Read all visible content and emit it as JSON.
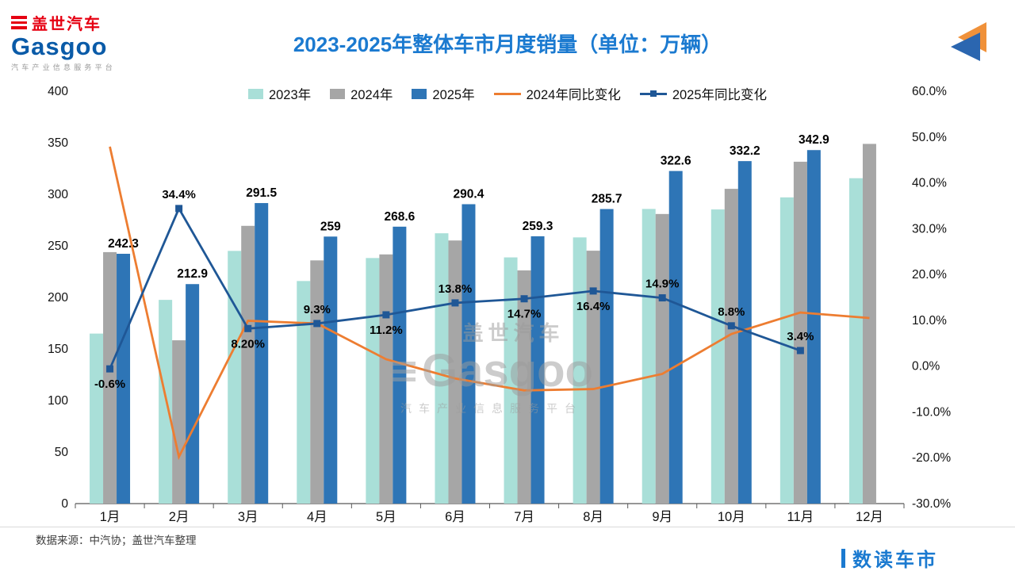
{
  "header": {
    "logo": {
      "brand_cn": "盖世汽车",
      "brand_en": "Gasgoo",
      "tagline": "汽车产业信息服务平台"
    },
    "title": "2023-2025年整体车市月度销量（单位：万辆）",
    "corner_icon": "double-triangle-logo-icon"
  },
  "legend": [
    {
      "label": "2023年",
      "type": "bar",
      "color": "#a9dfd8"
    },
    {
      "label": "2024年",
      "type": "bar",
      "color": "#a6a6a6"
    },
    {
      "label": "2025年",
      "type": "bar",
      "color": "#2e75b6"
    },
    {
      "label": "2024年同比变化",
      "type": "line",
      "color": "#ed7d31"
    },
    {
      "label": "2025年同比变化",
      "type": "line-marker",
      "color": "#1f5796"
    }
  ],
  "chart_data": {
    "type": "combo (grouped bar + line, dual axis)",
    "title": "2023-2025年整体车市月度销量（单位：万辆）",
    "categories": [
      "1月",
      "2月",
      "3月",
      "4月",
      "5月",
      "6月",
      "7月",
      "8月",
      "9月",
      "10月",
      "11月",
      "12月"
    ],
    "bar_series": [
      {
        "name": "2023年",
        "color": "#a9dfd8",
        "values": [
          164.9,
          197.6,
          245.1,
          215.9,
          238.2,
          262.2,
          238.8,
          258.2,
          285.8,
          285.3,
          297.0,
          315.6
        ]
      },
      {
        "name": "2024年",
        "color": "#a6a6a6",
        "values": [
          243.9,
          158.4,
          269.4,
          235.9,
          241.7,
          255.2,
          226.2,
          245.3,
          280.9,
          305.3,
          331.6,
          348.9
        ]
      },
      {
        "name": "2025年",
        "color": "#2e75b6",
        "values": [
          242.3,
          212.9,
          291.5,
          259,
          268.6,
          290.4,
          259.3,
          285.7,
          322.6,
          332.2,
          342.9,
          null
        ],
        "labels": [
          "242.3",
          "212.9",
          "291.5",
          "259",
          "268.6",
          "290.4",
          "259.3",
          "285.7",
          "322.6",
          "332.2",
          "342.9",
          ""
        ]
      }
    ],
    "line_series": [
      {
        "name": "2024年同比变化",
        "color": "#ed7d31",
        "axis": "right",
        "values": [
          47.9,
          -19.8,
          9.9,
          9.3,
          1.5,
          -2.7,
          -5.3,
          -5.0,
          -1.7,
          7.0,
          11.7,
          10.5
        ],
        "labels": []
      },
      {
        "name": "2025年同比变化",
        "color": "#1f5796",
        "axis": "right",
        "marker": "square",
        "values": [
          -0.6,
          34.4,
          8.2,
          9.3,
          11.2,
          13.8,
          14.7,
          16.4,
          14.9,
          8.8,
          3.4,
          null
        ],
        "labels": [
          "-0.6%",
          "34.4%",
          "8.20%",
          "9.3%",
          "11.2%",
          "13.8%",
          "14.7%",
          "16.4%",
          "14.9%",
          "8.8%",
          "3.4%",
          ""
        ],
        "label_pos": [
          "below",
          "above",
          "below",
          "above",
          "below",
          "above",
          "below",
          "below",
          "above",
          "above",
          "above",
          ""
        ]
      }
    ],
    "y_left": {
      "min": 0,
      "max": 400,
      "ticks": [
        0,
        50,
        100,
        150,
        200,
        250,
        300,
        350,
        400
      ]
    },
    "y_right": {
      "min": -30,
      "max": 60,
      "tick_labels_top_to_bottom": [
        "60.0%",
        "50.0%",
        "40.0%",
        "30.0%",
        "20.0%",
        "10.0%",
        "0.0%",
        "-10.0%",
        "-20.0%",
        "-30.0%"
      ]
    },
    "grid": "off",
    "legend_position": "top"
  },
  "watermark": {
    "line1": "盖世汽车",
    "line2": "Gasgoo",
    "line3": "汽车产业信息服务平台"
  },
  "footer": {
    "source": "数据来源：中汽协；盖世汽车整理",
    "brand": "数读车市"
  }
}
